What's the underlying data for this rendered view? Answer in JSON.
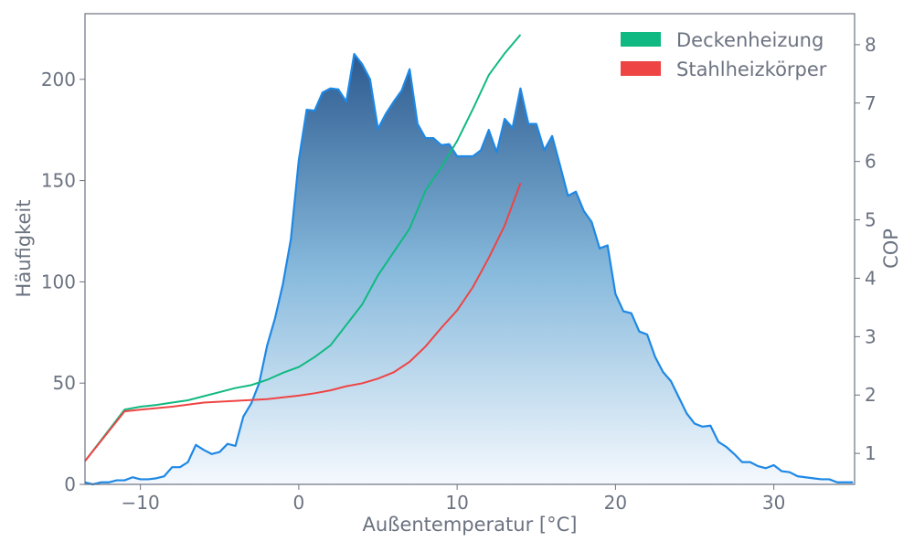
{
  "chart_data": {
    "type": "area",
    "title": "",
    "xlabel": "Außentemperatur [°C]",
    "ylabel": "Häufigkeit",
    "y2label": "COP",
    "xlim": [
      -13.5,
      35.1
    ],
    "ylim": [
      0,
      232.4
    ],
    "y2lim": [
      0.47,
      8.53
    ],
    "xticks": [
      -10,
      0,
      10,
      20,
      30
    ],
    "xtick_labels": [
      "−10",
      "0",
      "10",
      "20",
      "30"
    ],
    "yticks": [
      0,
      50,
      100,
      150,
      200
    ],
    "yticks_labels": [
      "0",
      "50",
      "100",
      "150",
      "200"
    ],
    "y2ticks": [
      1,
      2,
      3,
      4,
      5,
      6,
      7,
      8
    ],
    "y2tick_labels": [
      "1",
      "2",
      "3",
      "4",
      "5",
      "6",
      "7",
      "8"
    ],
    "grid": false,
    "legend_position": "top-right",
    "histogram": {
      "color": "#1e88e5",
      "fill_top": "#2c5a8f",
      "fill_bottom": "#f5f9fe",
      "x": [
        -13.5,
        -13,
        -12.5,
        -12,
        -11.5,
        -11,
        -10.5,
        -10,
        -9.5,
        -9,
        -8.5,
        -8,
        -7.5,
        -7,
        -6.5,
        -6,
        -5.5,
        -5,
        -4.5,
        -4,
        -3.5,
        -3,
        -2.5,
        -2,
        -1.5,
        -1,
        -0.5,
        0,
        0.5,
        1,
        1.5,
        2,
        2.5,
        3,
        3.5,
        4,
        4.5,
        5,
        5.5,
        6,
        6.5,
        7,
        7.5,
        8,
        8.5,
        9,
        9.5,
        10,
        10.5,
        11,
        11.5,
        12,
        12.5,
        13,
        13.5,
        14,
        14.5,
        15,
        15.5,
        16,
        16.5,
        17,
        17.5,
        18,
        18.5,
        19,
        19.5,
        20,
        20.5,
        21,
        21.5,
        22,
        22.5,
        23,
        23.5,
        24,
        24.5,
        25,
        25.5,
        26,
        26.5,
        27,
        27.5,
        28,
        28.5,
        29,
        29.5,
        30,
        30.5,
        31,
        31.5,
        32,
        32.5,
        33,
        33.5,
        34,
        34.5,
        35
      ],
      "values": [
        1,
        0,
        1,
        1,
        2,
        2,
        3.5,
        2.5,
        2.5,
        3,
        4,
        8.5,
        8.5,
        11,
        19.5,
        17,
        15,
        16,
        20,
        19,
        33.5,
        40,
        50,
        68.5,
        82,
        99,
        121,
        160,
        185,
        184.5,
        193.5,
        195.5,
        195,
        189,
        212.5,
        207.5,
        200,
        175.5,
        183,
        189,
        194.5,
        205,
        178,
        171,
        171,
        167.5,
        168,
        162,
        162,
        162,
        165,
        175,
        164,
        180.5,
        176,
        195.5,
        178,
        178,
        165,
        172,
        157.5,
        142.5,
        144.5,
        135,
        129.5,
        116.5,
        118,
        94,
        85.5,
        84.5,
        75.5,
        74,
        63,
        55.5,
        51,
        43,
        35,
        30,
        28.5,
        29,
        21,
        18.5,
        15,
        11,
        11,
        9,
        8,
        9.5,
        6.5,
        6,
        4,
        3.5,
        3,
        2.5,
        2.5,
        1,
        1,
        1
      ]
    },
    "series": [
      {
        "name": "Deckenheizung",
        "color": "#10b981",
        "axis": "right",
        "x": [
          -13.5,
          -11,
          -10,
          -9,
          -8,
          -7,
          -6,
          -5,
          -4,
          -3,
          -2,
          -1,
          0,
          1,
          2,
          3,
          4,
          5,
          6,
          7,
          8,
          9,
          10,
          11,
          12,
          13,
          14
        ],
        "values": [
          0.87,
          1.75,
          1.8,
          1.83,
          1.87,
          1.91,
          1.98,
          2.05,
          2.12,
          2.17,
          2.26,
          2.38,
          2.48,
          2.65,
          2.85,
          3.2,
          3.55,
          4.05,
          4.45,
          4.85,
          5.5,
          5.9,
          6.35,
          6.9,
          7.48,
          7.85,
          8.17
        ]
      },
      {
        "name": "Stahlheizkörper",
        "color": "#ef4444",
        "axis": "right",
        "x": [
          -13.5,
          -11,
          -10,
          -8,
          -6,
          -4,
          -2,
          0,
          1,
          2,
          3,
          4,
          5,
          6,
          7,
          8,
          9,
          10,
          11,
          12,
          13,
          14
        ],
        "values": [
          0.87,
          1.72,
          1.75,
          1.8,
          1.87,
          1.9,
          1.93,
          1.99,
          2.03,
          2.08,
          2.15,
          2.2,
          2.28,
          2.39,
          2.57,
          2.83,
          3.15,
          3.45,
          3.85,
          4.35,
          4.9,
          5.63
        ]
      }
    ]
  }
}
